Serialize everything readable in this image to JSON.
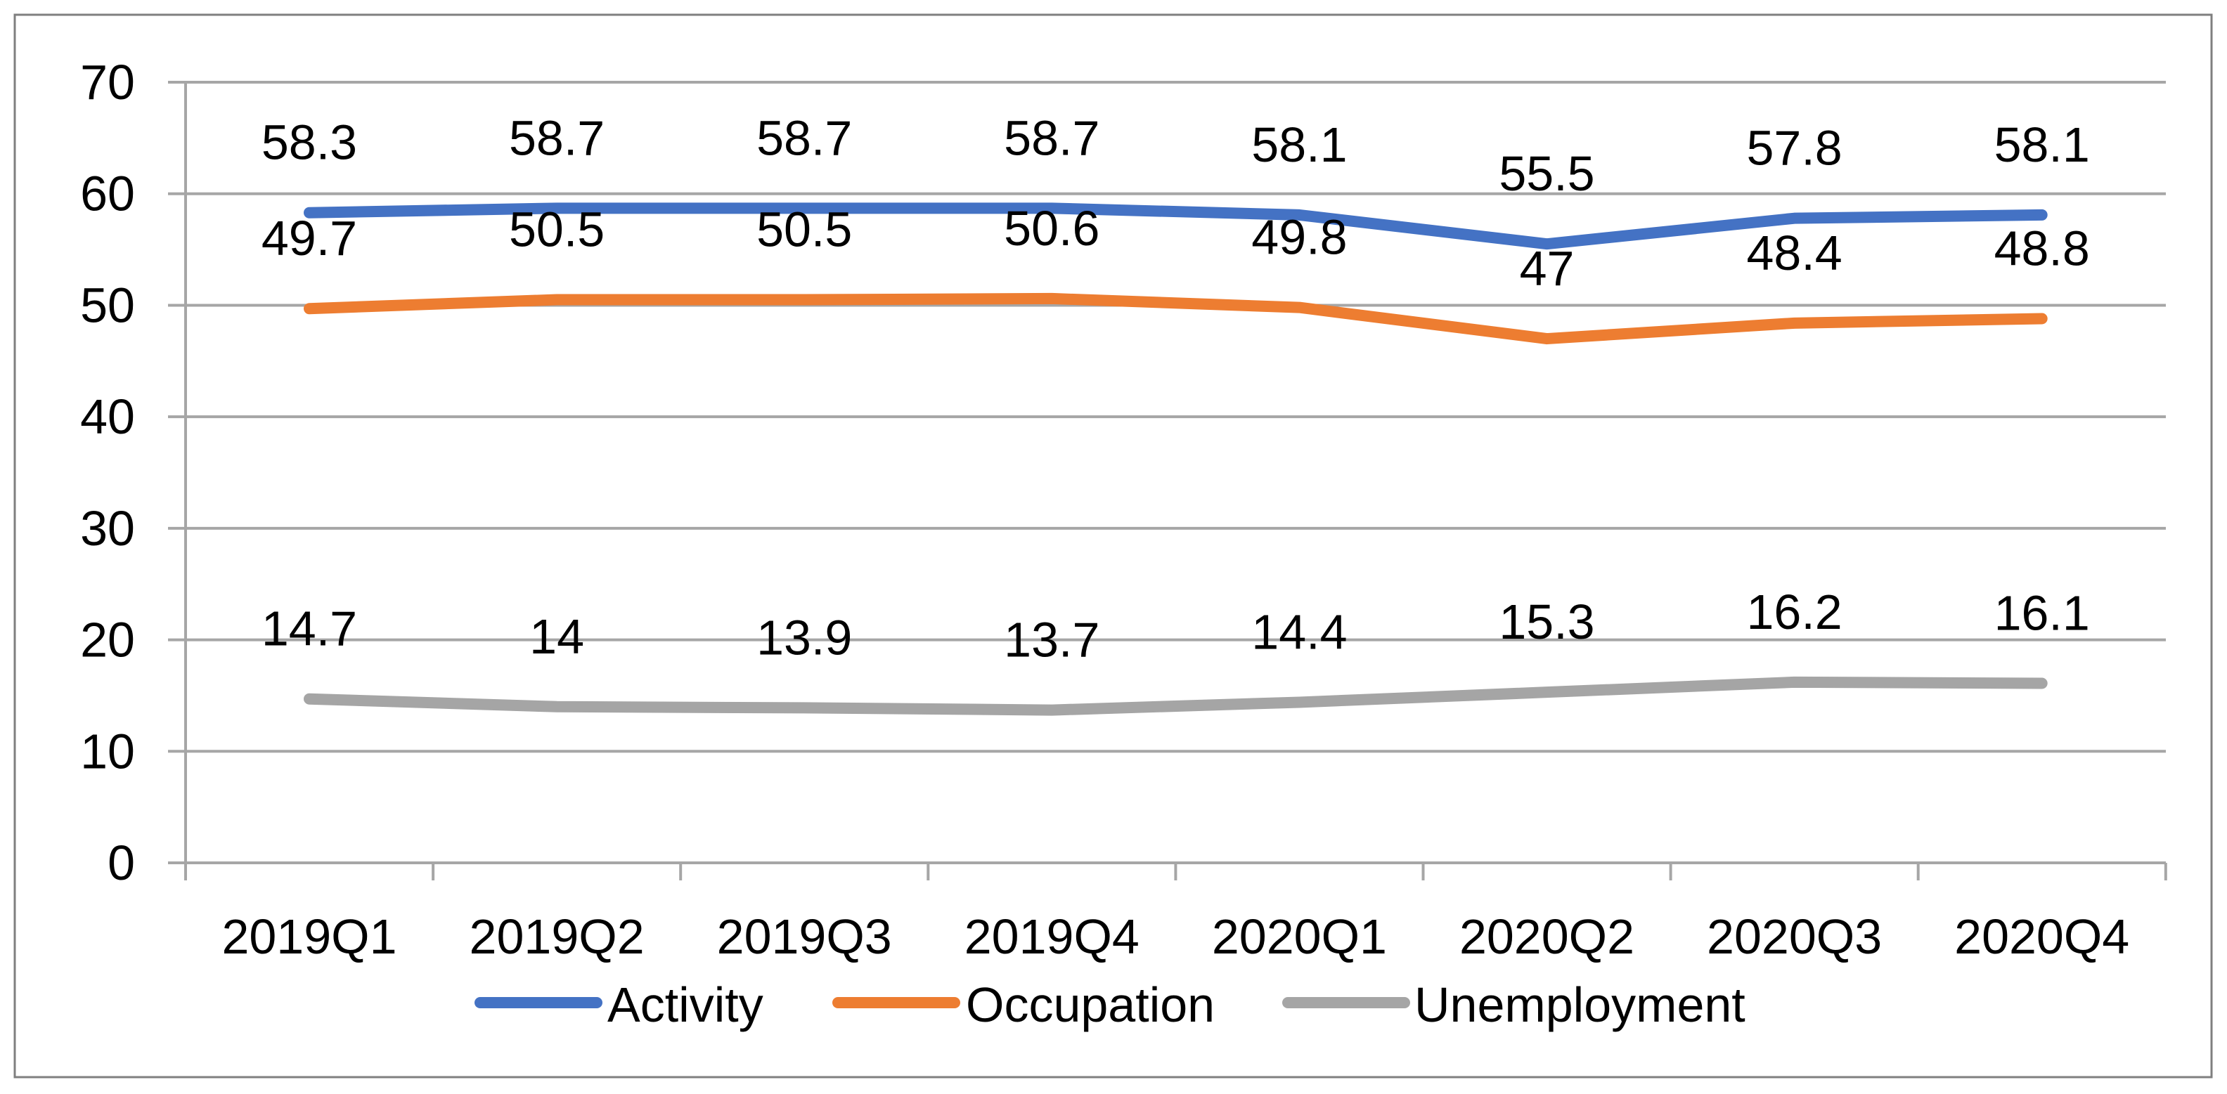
{
  "chart_data": {
    "type": "line",
    "title": "",
    "xlabel": "",
    "ylabel": "",
    "categories": [
      "2019Q1",
      "2019Q2",
      "2019Q3",
      "2019Q4",
      "2020Q1",
      "2020Q2",
      "2020Q3",
      "2020Q4"
    ],
    "series": [
      {
        "name": "Activity",
        "color": "#4472C4",
        "values": [
          58.3,
          58.7,
          58.7,
          58.7,
          58.1,
          55.5,
          57.8,
          58.1
        ],
        "data_labels": [
          "58.3",
          "58.7",
          "58.7",
          "58.7",
          "58.1",
          "55.5",
          "57.8",
          "58.1"
        ]
      },
      {
        "name": "Occupation",
        "color": "#ED7D31",
        "values": [
          49.7,
          50.5,
          50.5,
          50.6,
          49.8,
          47,
          48.4,
          48.8
        ],
        "data_labels": [
          "49.7",
          "50.5",
          "50.5",
          "50.6",
          "49.8",
          "47",
          "48.4",
          "48.8"
        ]
      },
      {
        "name": "Unemployment",
        "color": "#A5A5A5",
        "values": [
          14.7,
          14,
          13.9,
          13.7,
          14.4,
          15.3,
          16.2,
          16.1
        ],
        "data_labels": [
          "14.7",
          "14",
          "13.9",
          "13.7",
          "14.4",
          "15.3",
          "16.2",
          "16.1"
        ]
      }
    ],
    "y_axis": {
      "min": 0,
      "max": 70,
      "step": 10,
      "tick_labels": [
        "0",
        "10",
        "20",
        "30",
        "40",
        "50",
        "60",
        "70"
      ]
    },
    "grid": true,
    "legend_position": "bottom",
    "legend_entries": [
      "Activity",
      "Occupation",
      "Unemployment"
    ]
  },
  "colors": {
    "gridline": "#A6A6A6",
    "axis": "#A6A6A6",
    "border": "#7F7F7F",
    "text": "#000000",
    "background": "#FFFFFF"
  }
}
